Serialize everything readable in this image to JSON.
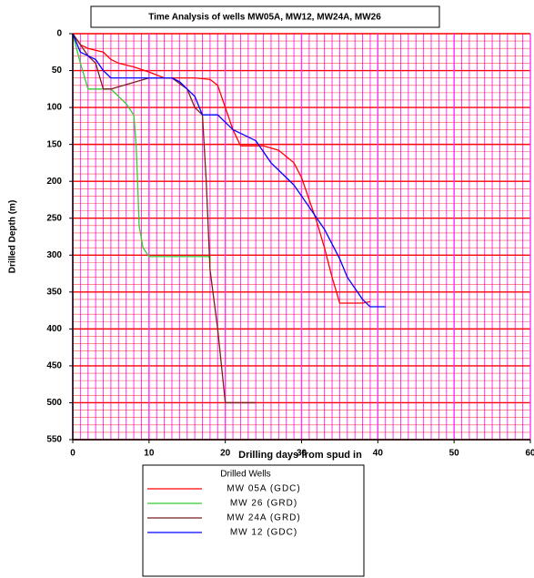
{
  "chart_data": {
    "type": "line",
    "title": "Time Analysis of wells MW05A, MW12, MW24A, MW26",
    "x_label": "Drilling days from spud in",
    "y_label": "Drilled Depth (m)",
    "legend_title": "Drilled Wells",
    "legend_position": "bottom",
    "xlim": [
      0,
      60
    ],
    "xticks": [
      0,
      10,
      20,
      30,
      40,
      50,
      60
    ],
    "ylim": [
      550,
      0
    ],
    "yticks": [
      0,
      50,
      100,
      150,
      200,
      250,
      300,
      350,
      400,
      450,
      500,
      550
    ],
    "grid": true,
    "x_minor_step": 1,
    "y_minor_step": 10,
    "x_grid_color": "#ff33ff",
    "y_grid_color": "#ff0000",
    "series": [
      {
        "name": "MW 05A (GDC)",
        "color": "#ff0000",
        "x": [
          0,
          1,
          2,
          4,
          5,
          6,
          8,
          10,
          12,
          16,
          18,
          19,
          20,
          21,
          22,
          25,
          27,
          29,
          30,
          31,
          32,
          33,
          34,
          35,
          38,
          39
        ],
        "values": [
          0,
          15,
          20,
          25,
          35,
          40,
          45,
          52,
          60,
          60,
          62,
          70,
          100,
          130,
          152,
          152,
          158,
          175,
          195,
          225,
          255,
          290,
          330,
          365,
          365,
          363
        ]
      },
      {
        "name": "MW 26 (GRD)",
        "color": "#33cc33",
        "x": [
          0,
          1,
          2,
          4,
          5,
          6,
          7,
          8,
          8.3,
          8.5,
          8.7,
          9.2,
          10,
          18,
          18
        ],
        "values": [
          0,
          40,
          75,
          75,
          75,
          85,
          95,
          110,
          150,
          200,
          260,
          290,
          302,
          302,
          310
        ]
      },
      {
        "name": "MW 24A (GRD)",
        "color": "#7a1f1f",
        "x": [
          0,
          1,
          2,
          3,
          4,
          5,
          10,
          13,
          15,
          16,
          17,
          17.5,
          18,
          19,
          20,
          24
        ],
        "values": [
          0,
          15,
          30,
          40,
          75,
          75,
          60,
          60,
          75,
          100,
          110,
          200,
          320,
          400,
          500,
          500
        ]
      },
      {
        "name": "MW 12 (GDC)",
        "color": "#0000ff",
        "x": [
          0,
          1,
          2,
          3,
          4,
          5,
          10,
          13,
          14,
          15,
          16,
          17,
          19,
          20,
          21,
          22,
          24,
          25,
          26,
          27,
          28,
          29,
          30,
          31,
          32,
          33,
          34,
          35,
          36,
          37,
          38,
          39,
          41
        ],
        "values": [
          0,
          25,
          30,
          35,
          50,
          60,
          60,
          60,
          65,
          75,
          85,
          110,
          110,
          120,
          130,
          135,
          145,
          160,
          175,
          185,
          195,
          205,
          220,
          235,
          250,
          265,
          285,
          305,
          330,
          345,
          360,
          370,
          370
        ]
      }
    ]
  }
}
